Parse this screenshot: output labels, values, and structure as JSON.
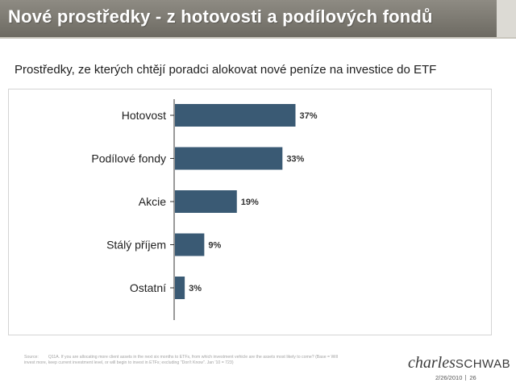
{
  "header": {
    "title": "Nové prostředky - z hotovosti a podílových fondů"
  },
  "subtitle": "Prostředky, ze kterých chtějí poradci alokovat nové peníze na investice do ETF",
  "chart_data": {
    "type": "bar",
    "orientation": "horizontal",
    "title": "",
    "xlabel": "",
    "ylabel": "",
    "categories": [
      "Hotovost",
      "Podílové fondy",
      "Akcie",
      "Stálý příjem",
      "Ostatní"
    ],
    "values": [
      37,
      33,
      19,
      9,
      3
    ],
    "data_labels": [
      "37%",
      "33%",
      "19%",
      "9%",
      "3%"
    ],
    "xlim": [
      0,
      100
    ],
    "grid": false,
    "legend": "none",
    "bar_color": "#3a5a74"
  },
  "footer": {
    "source_label": "Source:",
    "source_text": "Q11A. If you are allocating more client assets in the next six months to ETFs, from which investment vehicle are the assets most likely to come? (Base = Will invest more, keep current investment level, or will begin to invest in ETFs; excluding \"Don't Know\". Jan '10 = 723)",
    "logo_script": "charles",
    "logo_caps": "SCHWAB",
    "date": "2/26/2010",
    "page": "26"
  }
}
